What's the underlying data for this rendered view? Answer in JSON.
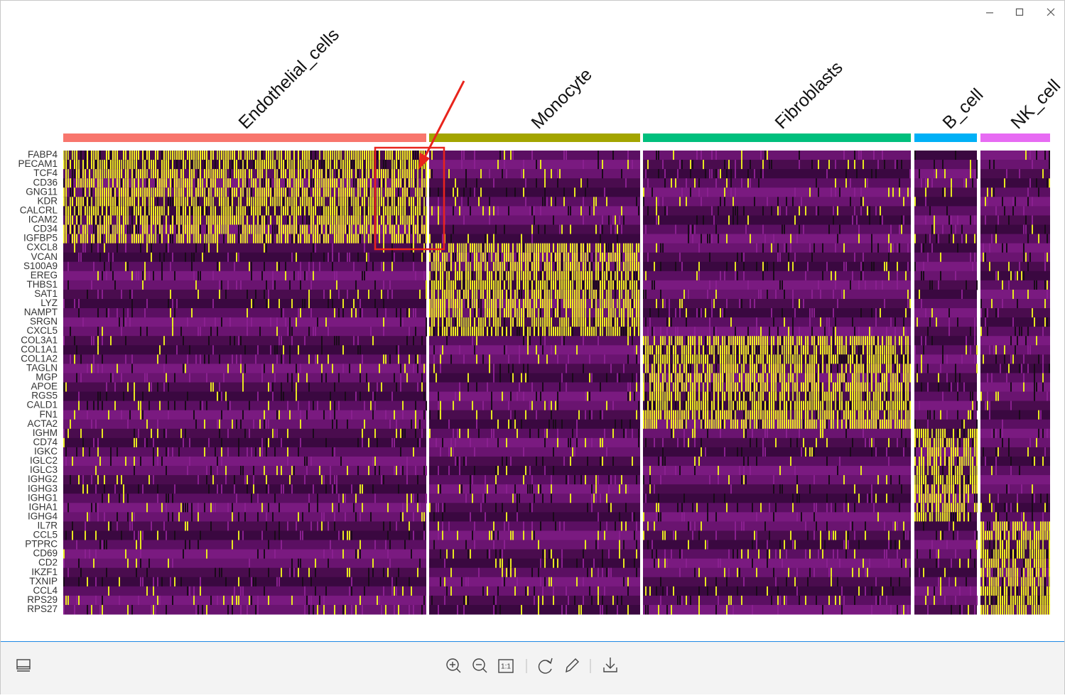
{
  "heatmap": {
    "clusters": [
      "Endothelial_cells",
      "Monocyte",
      "Fibroblasts",
      "B_cell",
      "NK_cell"
    ],
    "genes": [
      "FABP4",
      "PECAM1",
      "TCF4",
      "CD36",
      "GNG11",
      "KDR",
      "CALCRL",
      "ICAM2",
      "CD34",
      "IGFBP5",
      "CXCL8",
      "VCAN",
      "S100A9",
      "EREG",
      "THBS1",
      "SAT1",
      "LYZ",
      "NAMPT",
      "SRGN",
      "CXCL5",
      "COL3A1",
      "COL1A1",
      "COL1A2",
      "TAGLN",
      "MGP",
      "APOE",
      "RGS5",
      "CALD1",
      "FN1",
      "ACTA2",
      "IGHM",
      "CD74",
      "IGKC",
      "IGLC2",
      "IGLC3",
      "IGHG2",
      "IGHG3",
      "IGHG1",
      "IGHA1",
      "IGHG4",
      "IL7R",
      "CCL5",
      "PTPRC",
      "CD69",
      "CD2",
      "IKZF1",
      "TXNIP",
      "CCL4",
      "RPS29",
      "RPS27"
    ]
  },
  "toolbar": {
    "actual_size": "1:1"
  }
}
